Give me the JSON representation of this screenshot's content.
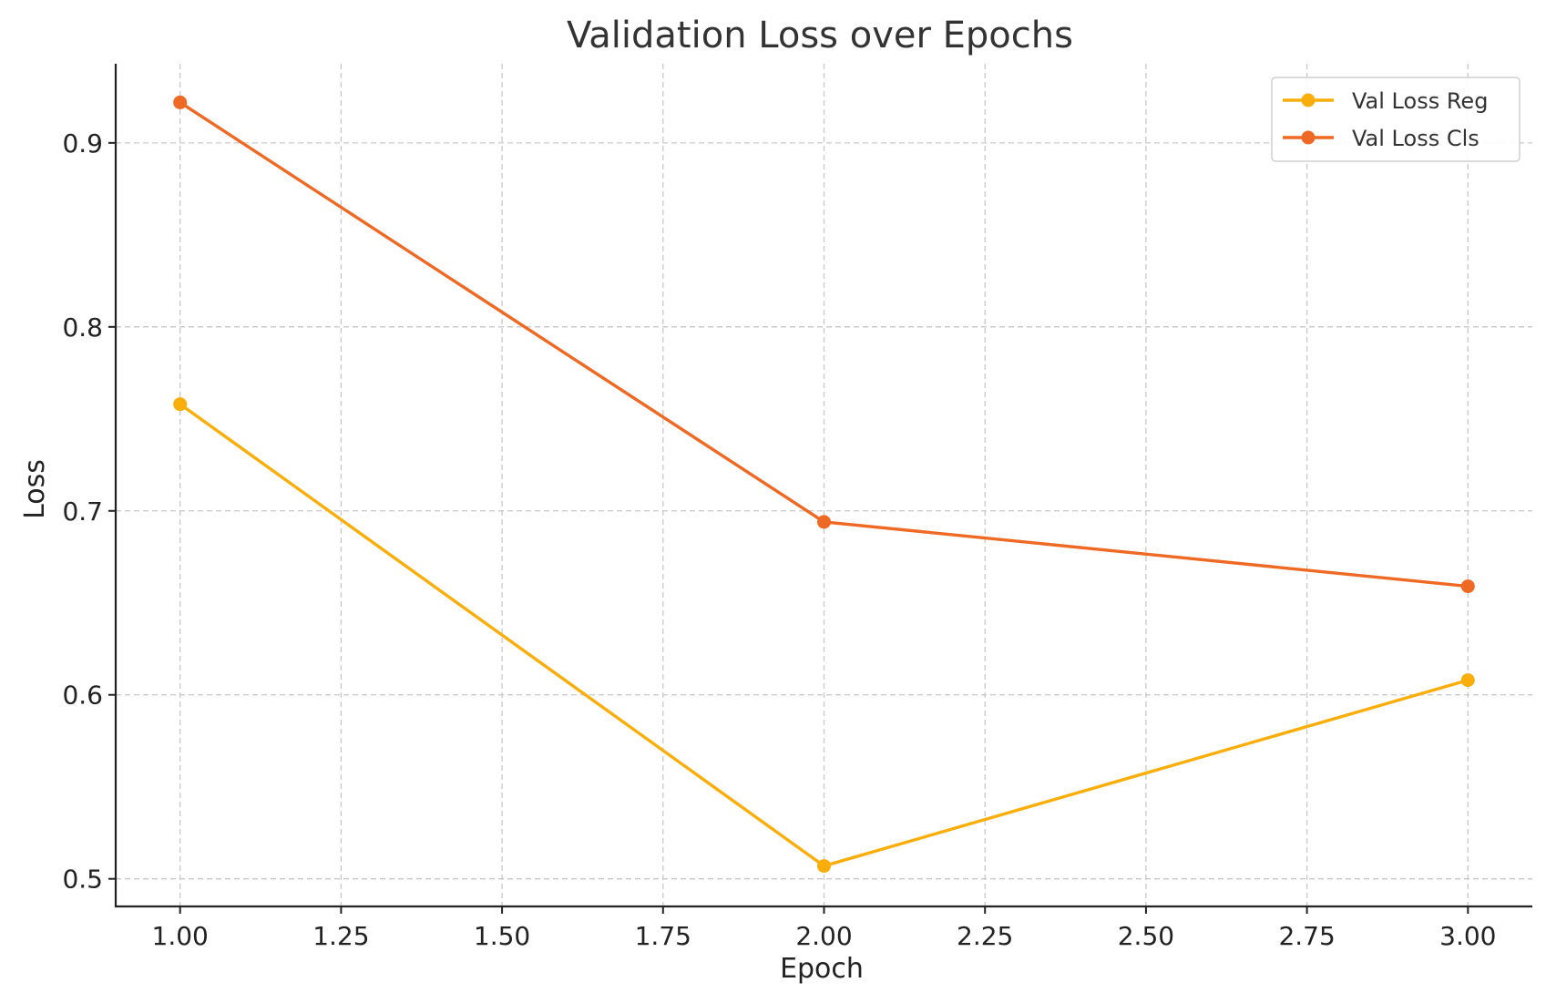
{
  "chart_data": {
    "type": "line",
    "title": "Validation Loss over Epochs",
    "xlabel": "Epoch",
    "ylabel": "Loss",
    "x": [
      1,
      2,
      3
    ],
    "xlim": [
      0.9,
      3.1
    ],
    "ylim": [
      0.485,
      0.943
    ],
    "xticks": [
      1.0,
      1.25,
      1.5,
      1.75,
      2.0,
      2.25,
      2.5,
      2.75,
      3.0
    ],
    "xtick_labels": [
      "1.00",
      "1.25",
      "1.50",
      "1.75",
      "2.00",
      "2.25",
      "2.50",
      "2.75",
      "3.00"
    ],
    "yticks": [
      0.5,
      0.6,
      0.7,
      0.8,
      0.9
    ],
    "ytick_labels": [
      "0.5",
      "0.6",
      "0.7",
      "0.8",
      "0.9"
    ],
    "grid": true,
    "legend_position": "top-right",
    "series": [
      {
        "name": "Val Loss Reg",
        "color": "#F9AE0B",
        "values": [
          0.758,
          0.507,
          0.608
        ]
      },
      {
        "name": "Val Loss Cls",
        "color": "#EE6A24",
        "values": [
          0.922,
          0.694,
          0.659
        ]
      }
    ]
  }
}
